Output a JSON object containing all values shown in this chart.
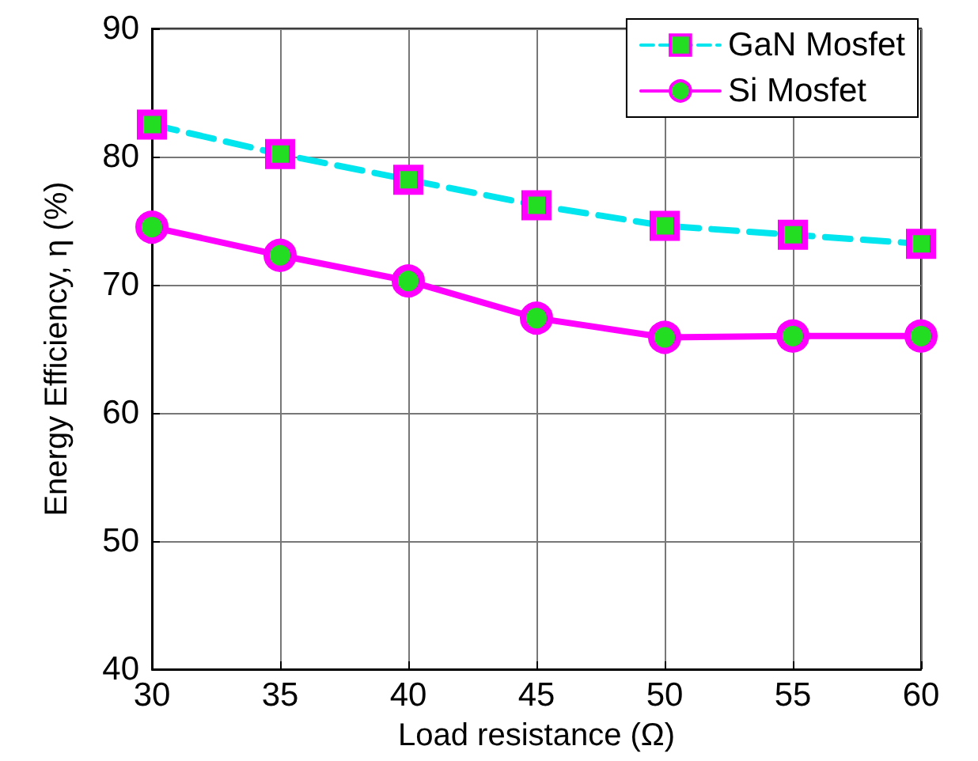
{
  "chart_data": {
    "type": "line",
    "xlabel": "Load resistance (Ω)",
    "ylabel": "Energy Efficiency, η (%)",
    "x": [
      30,
      35,
      40,
      45,
      50,
      55,
      60
    ],
    "series": [
      {
        "name": "GaN Mosfet",
        "color": "#00e5ee",
        "values": [
          82.5,
          80.2,
          78.2,
          76.2,
          74.6,
          73.9,
          73.2
        ],
        "marker": "square",
        "line_style": "dashed"
      },
      {
        "name": "Si Mosfet",
        "color": "#ff00ff",
        "values": [
          74.5,
          72.3,
          70.3,
          67.4,
          65.9,
          66.0,
          66.0
        ],
        "marker": "circle",
        "line_style": "solid"
      }
    ],
    "xlim": [
      30,
      60
    ],
    "xticks": [
      30,
      35,
      40,
      45,
      50,
      55,
      60
    ],
    "ylim": [
      40,
      90
    ],
    "yticks": [
      40,
      50,
      60,
      70,
      80,
      90
    ],
    "grid": true,
    "legend": "top right"
  }
}
